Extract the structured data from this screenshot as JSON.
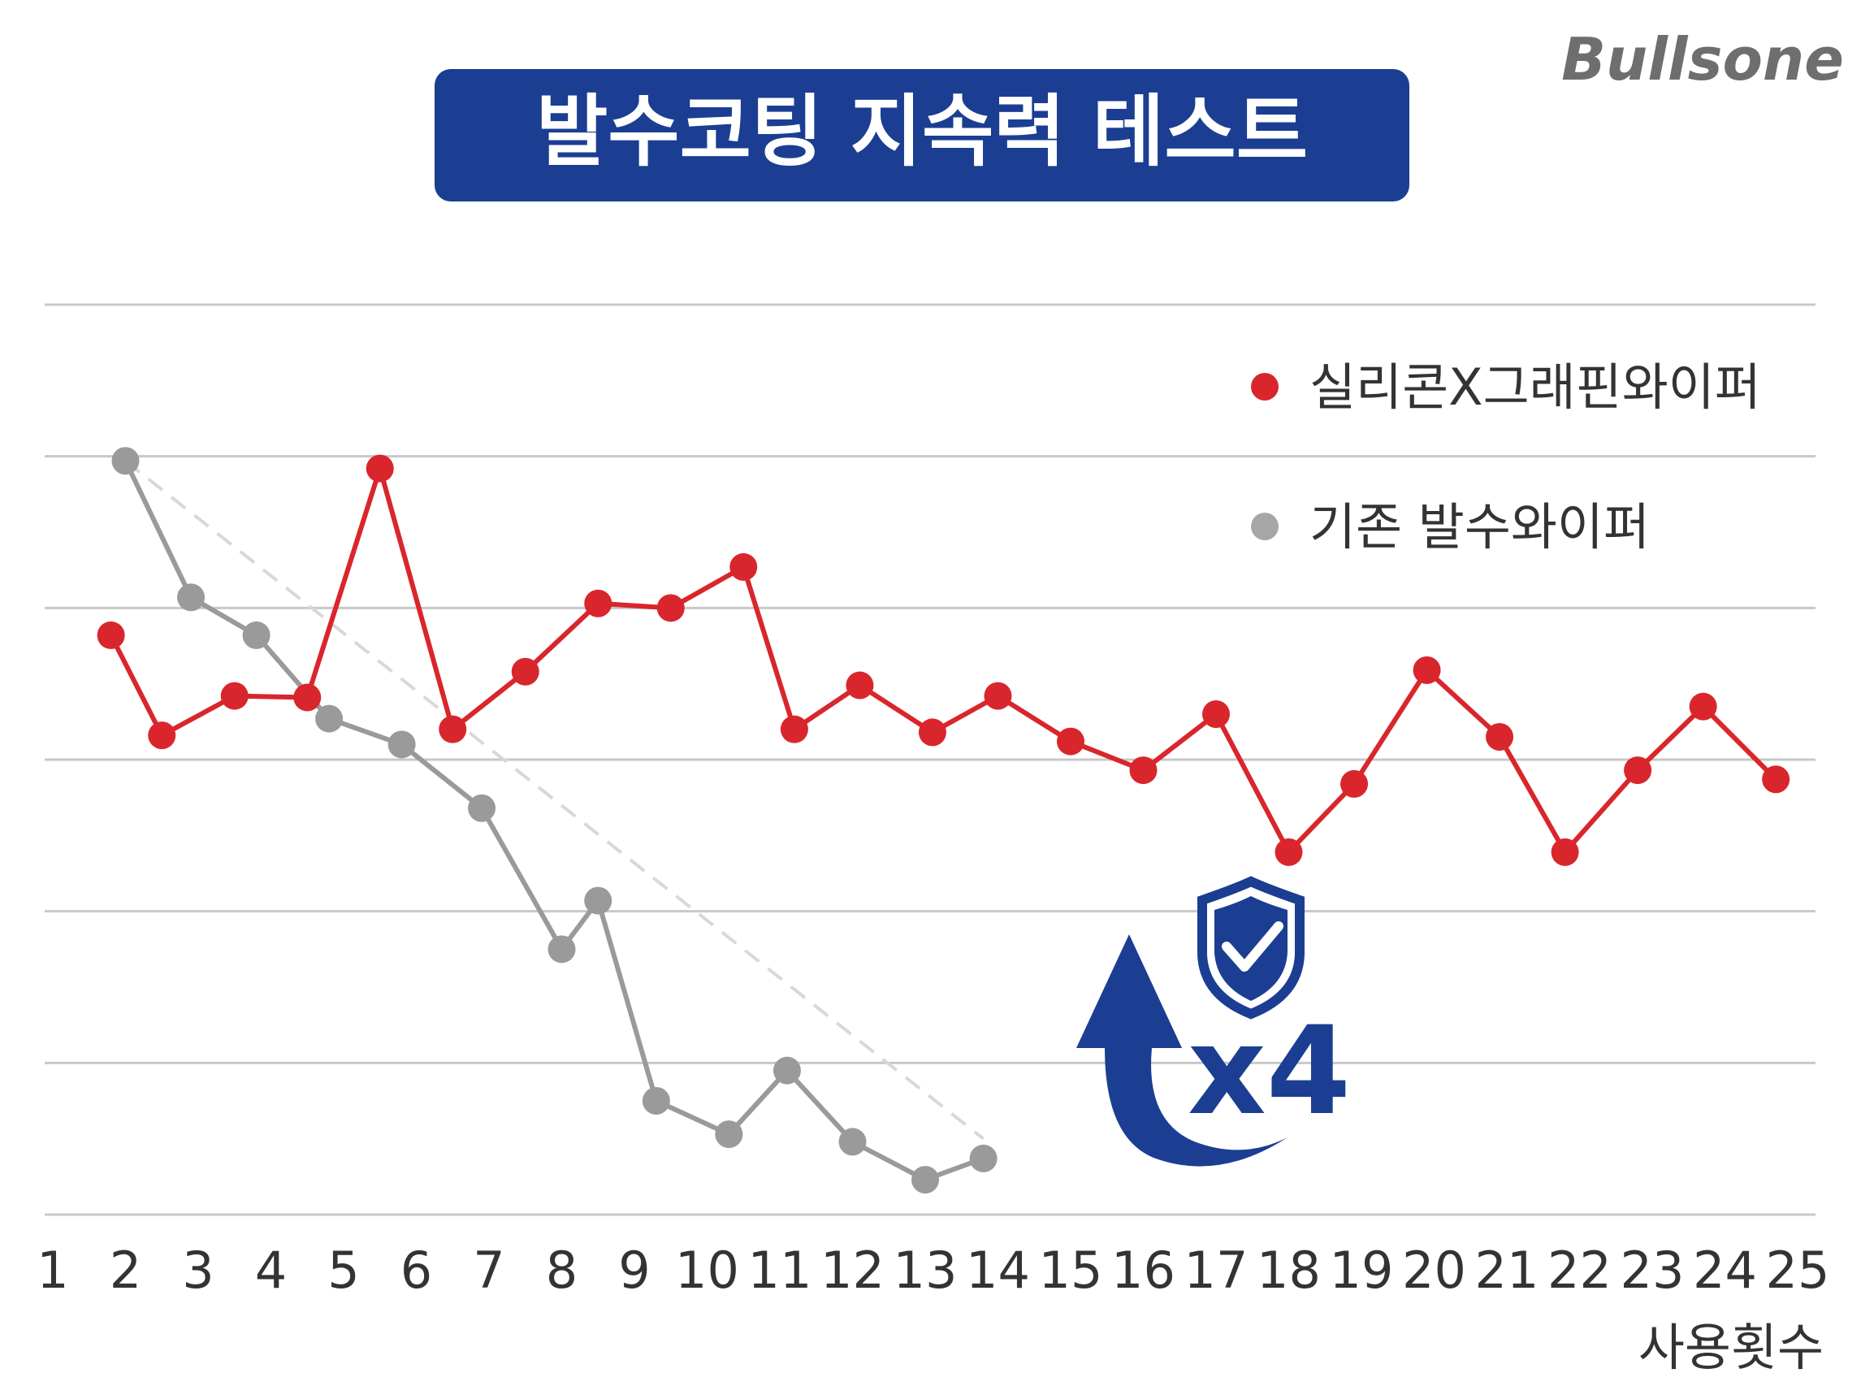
{
  "brand": "Bullsone",
  "chart_data": {
    "type": "line",
    "title": "발수코팅 지속력 테스트",
    "xlabel": "사용횟수",
    "ylabel": "",
    "categories": [
      "1",
      "2",
      "3",
      "4",
      "5",
      "6",
      "7",
      "8",
      "9",
      "10",
      "11",
      "12",
      "13",
      "14",
      "15",
      "16",
      "17",
      "18",
      "19",
      "20",
      "21",
      "22",
      "23",
      "24",
      "25"
    ],
    "ylim": [
      0,
      6
    ],
    "grid": true,
    "y_ticks_shown": false,
    "legend_position": "top-right",
    "series": [
      {
        "name": "실리콘X그래핀와이퍼",
        "color": "#d9262c",
        "x": [
          1.8,
          2.5,
          3.5,
          4.5,
          5.5,
          6.5,
          7.5,
          8.5,
          9.5,
          10.5,
          11.2,
          12.1,
          13.1,
          14.0,
          15.0,
          16.0,
          17.0,
          18.0,
          18.9,
          19.9,
          20.9,
          21.8,
          22.8,
          23.7,
          24.7
        ],
        "values": [
          3.82,
          3.16,
          3.42,
          3.41,
          4.92,
          3.2,
          3.58,
          4.03,
          4.0,
          4.27,
          3.2,
          3.49,
          3.18,
          3.42,
          3.12,
          2.93,
          3.3,
          2.39,
          2.84,
          3.59,
          3.15,
          2.39,
          2.93,
          3.35,
          2.87
        ]
      },
      {
        "name": "기존 발수와이퍼",
        "color": "#9a9a9a",
        "x": [
          2.0,
          2.9,
          3.8,
          4.8,
          5.8,
          6.9,
          8.0,
          8.5,
          9.3,
          10.3,
          11.1,
          12.0,
          13.0,
          13.8
        ],
        "values": [
          4.97,
          4.07,
          3.82,
          3.27,
          3.1,
          2.68,
          1.75,
          2.07,
          0.75,
          0.53,
          0.95,
          0.48,
          0.23,
          0.37
        ]
      }
    ],
    "trendline": {
      "color": "#d8d8d8",
      "style": "dashed",
      "x": [
        2.0,
        13.8
      ],
      "values": [
        4.97,
        0.5
      ]
    },
    "annotation": {
      "text": "x4",
      "icon": "shield-check-icon",
      "arrow": "up-arrow-icon",
      "color": "#1b3e93"
    }
  }
}
